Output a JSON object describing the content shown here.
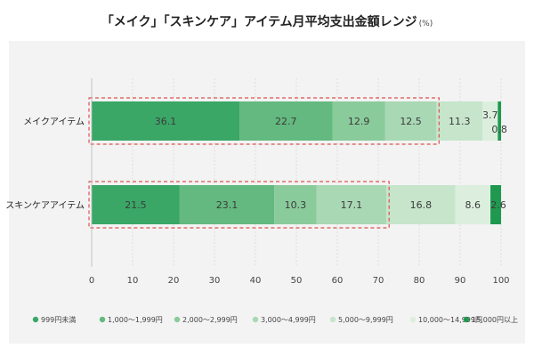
{
  "title": "「メイク」「スキンケア」アイテム月平均支出金額レンジ",
  "unit": "(%)",
  "chart_data": {
    "type": "bar",
    "orientation": "horizontal-stacked",
    "categories": [
      "メイクアイテム",
      "スキンケアアイテム"
    ],
    "series": [
      {
        "name": "999円未満",
        "color": "#3aa766",
        "values": [
          36.1,
          21.5
        ]
      },
      {
        "name": "1,000〜1,999円",
        "color": "#63b97f",
        "values": [
          22.7,
          23.1
        ]
      },
      {
        "name": "2,000〜2,999円",
        "color": "#8acb9b",
        "values": [
          12.9,
          10.3
        ]
      },
      {
        "name": "3,000〜4,999円",
        "color": "#a9d8b4",
        "values": [
          12.5,
          17.1
        ]
      },
      {
        "name": "5,000〜9,999円",
        "color": "#c6e5cb",
        "values": [
          11.3,
          16.8
        ]
      },
      {
        "name": "10,000〜14,999円",
        "color": "#dcefde",
        "values": [
          3.7,
          8.6
        ]
      },
      {
        "name": "15,000円以上",
        "color": "#1f9950",
        "values": [
          0.8,
          2.6
        ]
      }
    ],
    "x_ticks": [
      "0",
      "10",
      "20",
      "30",
      "40",
      "50",
      "60",
      "70",
      "80",
      "90",
      "100"
    ],
    "xlim": [
      0,
      100
    ],
    "highlight_boxes": [
      {
        "category": "メイクアイテム",
        "series_count": 4
      },
      {
        "category": "スキンケアアイテム",
        "series_count": 4
      }
    ],
    "grid": true,
    "legend_position": "bottom"
  }
}
